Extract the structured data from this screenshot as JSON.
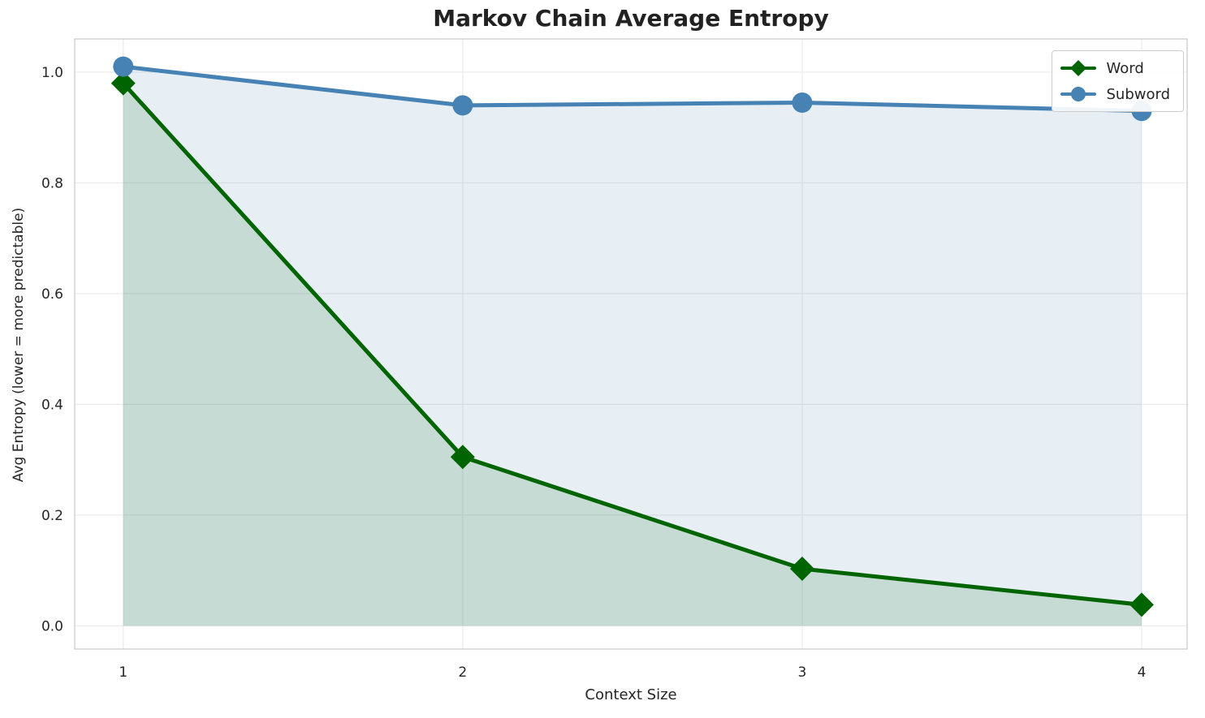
{
  "chart_data": {
    "type": "line",
    "x": [
      1,
      2,
      3,
      4
    ],
    "series": [
      {
        "name": "Word",
        "values": [
          0.98,
          0.305,
          0.103,
          0.038
        ],
        "color": "#006400",
        "marker": "diamond",
        "fill_opacity": 0.14
      },
      {
        "name": "Subword",
        "values": [
          1.01,
          0.94,
          0.945,
          0.93
        ],
        "color": "#4682b4",
        "marker": "circle",
        "fill_opacity": 0.13
      }
    ],
    "title": "Markov Chain Average Entropy",
    "xlabel": "Context Size",
    "ylabel": "Avg Entropy (lower = more predictable)",
    "xlim": [
      0.857,
      4.134
    ],
    "ylim": [
      -0.042,
      1.06
    ],
    "xticks": [
      1,
      2,
      3,
      4
    ],
    "yticks": [
      0.0,
      0.2,
      0.4,
      0.6,
      0.8,
      1.0
    ],
    "grid": true,
    "legend_position": "upper right",
    "fill_baseline": 0
  }
}
